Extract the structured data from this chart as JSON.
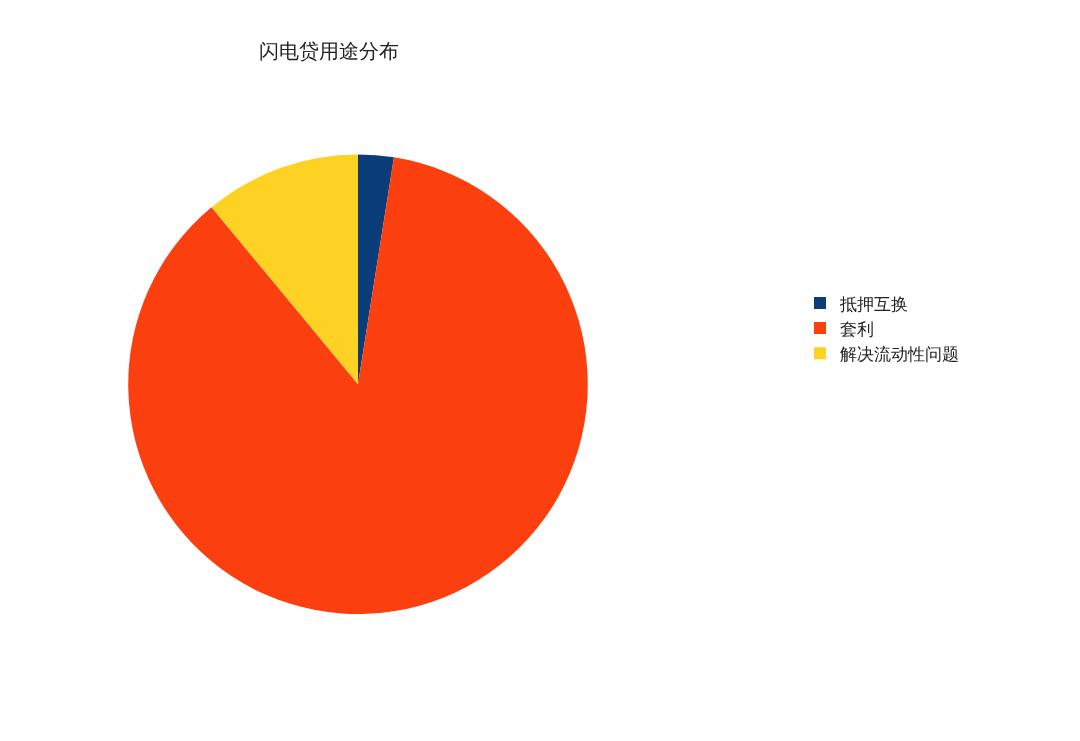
{
  "chart_data": {
    "type": "pie",
    "title": "闪电贷用途分布",
    "categories": [
      "抵押互换",
      "套利",
      "解决流动性问题"
    ],
    "values": [
      2.5,
      86.5,
      11
    ],
    "colors": [
      "#0a3d7a",
      "#fc3f0f",
      "#fdd223"
    ],
    "legend": "right"
  }
}
